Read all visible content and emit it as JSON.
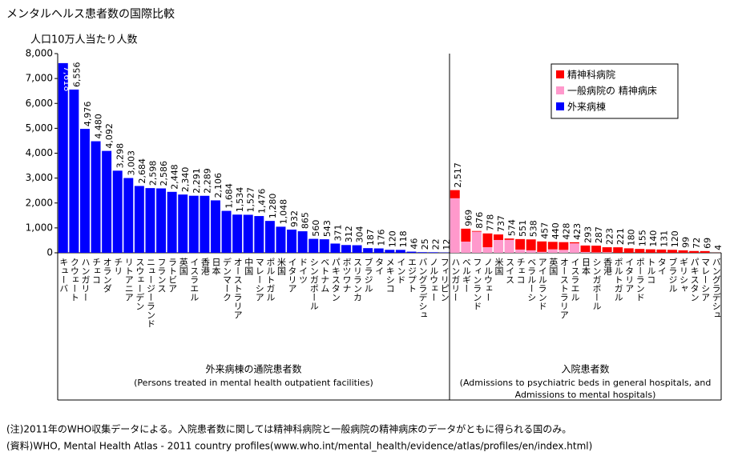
{
  "chart_data": {
    "type": "bar",
    "title": "メンタルヘルス患者数の国際比較",
    "ylabel": "人口10万人当たり人数",
    "ylim": [
      0,
      8000
    ],
    "yticks": [
      0,
      {
        "value": 1000,
        "label": "1,000"
      },
      {
        "value": 2000,
        "label": "2,000"
      },
      {
        "value": 3000,
        "label": "3,000"
      },
      {
        "value": 4000,
        "label": "4,000"
      },
      {
        "value": 5000,
        "label": "5,000"
      },
      {
        "value": 6000,
        "label": "6,000"
      },
      {
        "value": 7000,
        "label": "7,000"
      },
      {
        "value": 8000,
        "label": "8,000"
      }
    ],
    "legend_position": "upper right",
    "panels": [
      {
        "label": "外来病棟の通院患者数",
        "sublabel": [
          "(Persons treated in mental health outpatient facilities)"
        ],
        "categories": [
          "キューバ",
          "クウェート",
          "ハンガリー",
          "チェコ",
          "オランダ",
          "チリ",
          "リトアニア",
          "スウェーデン",
          "ニュージーランド",
          "フランス",
          "ラトビア",
          "英国",
          "イスラエル",
          "香港",
          "日本",
          "デンマーク",
          "オーストラリア",
          "中国",
          "マレーシア",
          "ポルトガル",
          "米国",
          "イタリア",
          "ドイツ",
          "シンガポール",
          "ベトナム",
          "パキスタン",
          "ボツワナ",
          "スリランカ",
          "ブラジル",
          "タイ",
          "メキシコ",
          "インド",
          "エジプト",
          "バングラデシュ",
          "ノルウェー",
          "フィリピン"
        ],
        "series": [
          {
            "name": "外来病棟",
            "color": "#0000ff",
            "values": [
              7618,
              6556,
              4976,
              4480,
              4092,
              3298,
              3003,
              2684,
              2598,
              2586,
              2448,
              2340,
              2291,
              2289,
              2106,
              1684,
              1534,
              1527,
              1476,
              1280,
              1048,
              932,
              865,
              560,
              543,
              371,
              312,
              304,
              187,
              176,
              120,
              118,
              46,
              25,
              22,
              12
            ],
            "value_labels": [
              "7,618",
              "6,556",
              "4,976",
              "4,480",
              "4,092",
              "3,298",
              "3,003",
              "2,684",
              "2,598",
              "2,586",
              "2,448",
              "2,340",
              "2,291",
              "2,289",
              "2,106",
              "1,684",
              "1,534",
              "1,527",
              "1,476",
              "1,280",
              "1,048",
              "932",
              "865",
              "560",
              "543",
              "371",
              "312",
              "304",
              "187",
              "176",
              "120",
              "118",
              "46",
              "25",
              "22",
              "12"
            ]
          }
        ]
      },
      {
        "label": "入院患者数",
        "sublabel": [
          "(Admissions to psychiatric beds in general hospitals, and",
          "Admissions to mental hospitals)"
        ],
        "categories": [
          "ハンガリー",
          "ベルギー",
          "フィンランド",
          "ノルウェー",
          "米国",
          "スイス",
          "チェコ",
          "ベラルーシ",
          "アイルランド",
          "英国",
          "オーストラリア",
          "イスラエル",
          "日本",
          "シンガポール",
          "香港",
          "ポルトガル",
          "イタリア",
          "ポーランド",
          "トルコ",
          "タイ",
          "ブラジル",
          "ギリシャ",
          "パキスタン",
          "マレーシア",
          "バングラデシュ"
        ],
        "series": [
          {
            "name": "精神科病院",
            "color": "#ff0000",
            "values": [
              327,
              519,
              26,
              553,
              222,
              54,
              421,
              438,
              420,
              300,
              310,
              43,
              260,
              270,
              200,
              221,
              180,
              155,
              140,
              131,
              120,
              99,
              72,
              69,
              4
            ]
          },
          {
            "name": "一般病院の 精神病床",
            "color": "#ff99cc",
            "values": [
              2190,
              450,
              850,
              225,
              515,
              520,
              130,
              100,
              37,
              140,
              118,
              380,
              33,
              17,
              23,
              0,
              0,
              0,
              0,
              0,
              0,
              0,
              0,
              0,
              0
            ]
          }
        ],
        "total_labels": [
          "2,517",
          "969",
          "876",
          "778",
          "737",
          "574",
          "551",
          "538",
          "457",
          "440",
          "428",
          "423",
          "293",
          "287",
          "223",
          "221",
          "180",
          "155",
          "140",
          "131",
          "120",
          "99",
          "72",
          "69",
          "4"
        ]
      }
    ]
  },
  "notes": [
    "(注)2011年のWHO収集データによる。入院患者数に関しては精神科病院と一般病院の精神病床のデータがともに得られる国のみ。",
    "(資料)WHO, Mental Health Atlas - 2011 country profiles(www.who.int/mental_health/evidence/atlas/profiles/en/index.html)"
  ]
}
